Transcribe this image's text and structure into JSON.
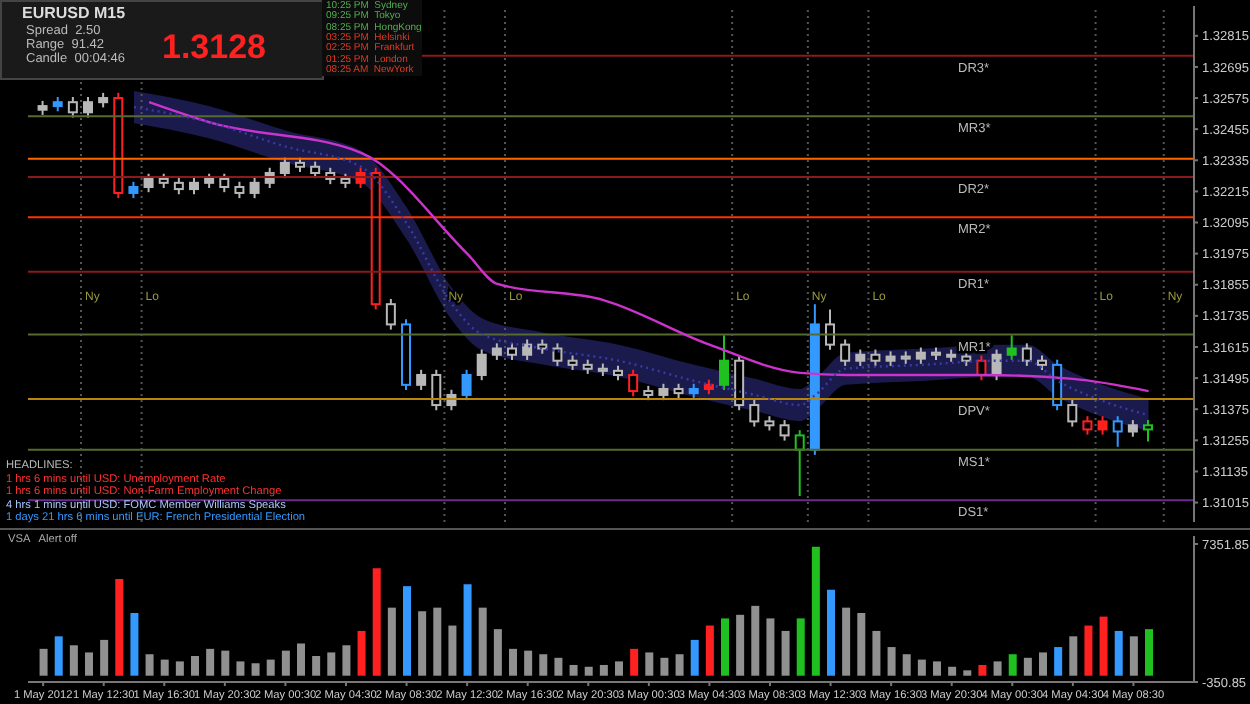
{
  "chart_data": [
    {
      "type": "candlestick",
      "title": "EURUSD M15",
      "x": [
        "2012-05-01T08:30",
        "2012-05-01T09:30",
        "2012-05-01T10:30",
        "2012-05-01T11:30",
        "2012-05-01T12:30",
        "2012-05-01T13:30",
        "2012-05-01T14:30",
        "2012-05-01T15:30",
        "2012-05-01T16:30",
        "2012-05-01T17:30",
        "2012-05-01T18:30",
        "2012-05-01T19:30",
        "2012-05-01T20:30",
        "2012-05-01T21:30",
        "2012-05-01T22:30",
        "2012-05-01T23:30",
        "2012-05-02T00:30",
        "2012-05-02T01:30",
        "2012-05-02T02:30",
        "2012-05-02T03:30",
        "2012-05-02T04:30",
        "2012-05-02T05:30",
        "2012-05-02T06:30",
        "2012-05-02T07:30",
        "2012-05-02T08:30",
        "2012-05-02T09:30",
        "2012-05-02T10:30",
        "2012-05-02T11:30",
        "2012-05-02T12:30",
        "2012-05-02T13:30",
        "2012-05-02T14:30",
        "2012-05-02T15:30",
        "2012-05-02T16:30",
        "2012-05-02T17:30",
        "2012-05-02T18:30",
        "2012-05-02T19:30",
        "2012-05-02T20:30",
        "2012-05-02T21:30",
        "2012-05-02T22:30",
        "2012-05-02T23:30",
        "2012-05-03T00:30",
        "2012-05-03T01:30",
        "2012-05-03T02:30",
        "2012-05-03T03:30",
        "2012-05-03T04:30",
        "2012-05-03T05:30",
        "2012-05-03T06:30",
        "2012-05-03T07:30",
        "2012-05-03T08:30",
        "2012-05-03T09:30",
        "2012-05-03T10:30",
        "2012-05-03T11:30",
        "2012-05-03T12:30",
        "2012-05-03T13:30",
        "2012-05-03T14:30",
        "2012-05-03T15:30",
        "2012-05-03T16:30",
        "2012-05-03T17:30",
        "2012-05-03T18:30",
        "2012-05-03T19:30",
        "2012-05-03T20:30",
        "2012-05-03T21:30",
        "2012-05-03T22:30",
        "2012-05-03T23:30",
        "2012-05-04T00:30",
        "2012-05-04T01:30",
        "2012-05-04T02:30",
        "2012-05-04T03:30",
        "2012-05-04T04:30",
        "2012-05-04T05:30",
        "2012-05-04T06:30",
        "2012-05-04T07:30",
        "2012-05-04T08:30",
        "2012-05-04T09:30"
      ],
      "ohlc": [
        [
          1.3253,
          1.32564,
          1.3251,
          1.32544
        ],
        [
          1.32544,
          1.32579,
          1.32524,
          1.32559
        ],
        [
          1.32559,
          1.32579,
          1.325,
          1.3252
        ],
        [
          1.3252,
          1.32579,
          1.325,
          1.32559
        ],
        [
          1.32559,
          1.32595,
          1.32539,
          1.32575
        ],
        [
          1.32575,
          1.32595,
          1.32189,
          1.32209
        ],
        [
          1.32209,
          1.32252,
          1.32189,
          1.32232
        ],
        [
          1.32232,
          1.32283,
          1.32212,
          1.32263
        ],
        [
          1.32263,
          1.32283,
          1.32228,
          1.32248
        ],
        [
          1.32248,
          1.32268,
          1.32204,
          1.32224
        ],
        [
          1.32224,
          1.32268,
          1.32204,
          1.32248
        ],
        [
          1.32248,
          1.32283,
          1.32228,
          1.32263
        ],
        [
          1.32263,
          1.32283,
          1.32212,
          1.32232
        ],
        [
          1.32232,
          1.32252,
          1.32189,
          1.32209
        ],
        [
          1.32209,
          1.32268,
          1.32189,
          1.32248
        ],
        [
          1.32248,
          1.32306,
          1.32228,
          1.32286
        ],
        [
          1.32286,
          1.32345,
          1.32266,
          1.32325
        ],
        [
          1.32325,
          1.32345,
          1.3229,
          1.3231
        ],
        [
          1.3231,
          1.3233,
          1.32266,
          1.32286
        ],
        [
          1.32286,
          1.32306,
          1.32243,
          1.32263
        ],
        [
          1.32263,
          1.32283,
          1.32228,
          1.32248
        ],
        [
          1.32248,
          1.32306,
          1.32228,
          1.32286
        ],
        [
          1.32286,
          1.32306,
          1.3176,
          1.3178
        ],
        [
          1.3178,
          1.318,
          1.31682,
          1.31702
        ],
        [
          1.31702,
          1.31722,
          1.31449,
          1.31469
        ],
        [
          1.31469,
          1.31527,
          1.31449,
          1.31507
        ],
        [
          1.31507,
          1.31527,
          1.31371,
          1.31391
        ],
        [
          1.31391,
          1.3145,
          1.31371,
          1.3143
        ],
        [
          1.3143,
          1.31527,
          1.3141,
          1.31507
        ],
        [
          1.31507,
          1.31605,
          1.31487,
          1.31585
        ],
        [
          1.31585,
          1.31629,
          1.31565,
          1.31609
        ],
        [
          1.31609,
          1.31629,
          1.31565,
          1.31585
        ],
        [
          1.31585,
          1.31644,
          1.31565,
          1.31624
        ],
        [
          1.31624,
          1.31644,
          1.31589,
          1.31609
        ],
        [
          1.31609,
          1.31629,
          1.31542,
          1.31562
        ],
        [
          1.31562,
          1.31582,
          1.31526,
          1.31546
        ],
        [
          1.31546,
          1.31566,
          1.31511,
          1.31531
        ],
        [
          1.31531,
          1.31551,
          1.31503,
          1.31523
        ],
        [
          1.31523,
          1.31543,
          1.31487,
          1.31507
        ],
        [
          1.31507,
          1.31527,
          1.31425,
          1.31445
        ],
        [
          1.31445,
          1.31465,
          1.3141,
          1.3143
        ],
        [
          1.3143,
          1.31473,
          1.3141,
          1.31453
        ],
        [
          1.31453,
          1.31473,
          1.31417,
          1.31437
        ],
        [
          1.31437,
          1.31473,
          1.31417,
          1.31453
        ],
        [
          1.31453,
          1.31489,
          1.31433,
          1.31469
        ],
        [
          1.31469,
          1.3166,
          1.31449,
          1.31562
        ],
        [
          1.31562,
          1.31582,
          1.31371,
          1.31391
        ],
        [
          1.31391,
          1.31411,
          1.31308,
          1.31328
        ],
        [
          1.31328,
          1.31348,
          1.31293,
          1.31313
        ],
        [
          1.31313,
          1.31333,
          1.31254,
          1.31274
        ],
        [
          1.31274,
          1.31294,
          1.3104,
          1.31219
        ],
        [
          1.31219,
          1.3178,
          1.31199,
          1.31702
        ],
        [
          1.31702,
          1.3176,
          1.31604,
          1.31624
        ],
        [
          1.31624,
          1.31644,
          1.31542,
          1.31562
        ],
        [
          1.31562,
          1.31605,
          1.31542,
          1.31585
        ],
        [
          1.31585,
          1.31605,
          1.31542,
          1.31562
        ],
        [
          1.31562,
          1.31598,
          1.31542,
          1.31578
        ],
        [
          1.31578,
          1.31598,
          1.3155,
          1.3157
        ],
        [
          1.3157,
          1.31613,
          1.3155,
          1.31593
        ],
        [
          1.31593,
          1.31613,
          1.31565,
          1.31585
        ],
        [
          1.31585,
          1.31605,
          1.31558,
          1.31578
        ],
        [
          1.31578,
          1.31598,
          1.31542,
          1.31562
        ],
        [
          1.31562,
          1.31582,
          1.31487,
          1.31507
        ],
        [
          1.31507,
          1.31605,
          1.31487,
          1.31585
        ],
        [
          1.31585,
          1.3166,
          1.31565,
          1.31609
        ],
        [
          1.31609,
          1.31629,
          1.31542,
          1.31562
        ],
        [
          1.31562,
          1.31582,
          1.31526,
          1.31546
        ],
        [
          1.31546,
          1.31566,
          1.31371,
          1.31391
        ],
        [
          1.31391,
          1.31411,
          1.31308,
          1.31328
        ],
        [
          1.31328,
          1.31348,
          1.31277,
          1.31297
        ],
        [
          1.31297,
          1.31348,
          1.31277,
          1.31328
        ],
        [
          1.31328,
          1.31348,
          1.3123,
          1.31289
        ],
        [
          1.31289,
          1.31333,
          1.31269,
          1.31313
        ],
        [
          1.31313,
          1.31333,
          1.3125,
          1.31297
        ]
      ],
      "colors": [
        "#b8b8b8",
        "#3399ff",
        "#b8b8b8",
        "#b8b8b8",
        "#b8b8b8",
        "#ff2020",
        "#3399ff",
        "#b8b8b8",
        "#b8b8b8",
        "#b8b8b8",
        "#b8b8b8",
        "#b8b8b8",
        "#b8b8b8",
        "#b8b8b8",
        "#b8b8b8",
        "#b8b8b8",
        "#b8b8b8",
        "#b8b8b8",
        "#b8b8b8",
        "#b8b8b8",
        "#b8b8b8",
        "#ff2020",
        "#ff2020",
        "#b8b8b8",
        "#3399ff",
        "#b8b8b8",
        "#b8b8b8",
        "#b8b8b8",
        "#3399ff",
        "#b8b8b8",
        "#b8b8b8",
        "#b8b8b8",
        "#b8b8b8",
        "#b8b8b8",
        "#b8b8b8",
        "#b8b8b8",
        "#b8b8b8",
        "#b8b8b8",
        "#b8b8b8",
        "#ff2020",
        "#b8b8b8",
        "#b8b8b8",
        "#b8b8b8",
        "#3399ff",
        "#ff2020",
        "#20c020",
        "#b8b8b8",
        "#b8b8b8",
        "#b8b8b8",
        "#b8b8b8",
        "#20c020",
        "#3399ff",
        "#b8b8b8",
        "#b8b8b8",
        "#b8b8b8",
        "#b8b8b8",
        "#b8b8b8",
        "#b8b8b8",
        "#b8b8b8",
        "#b8b8b8",
        "#b8b8b8",
        "#b8b8b8",
        "#ff2020",
        "#b8b8b8",
        "#20c020",
        "#b8b8b8",
        "#b8b8b8",
        "#3399ff",
        "#b8b8b8",
        "#ff2020",
        "#ff2020",
        "#3399ff",
        "#b8b8b8",
        "#20c020"
      ],
      "series": [
        {
          "type": "line",
          "color": "#cc33cc",
          "x": [
            "2012-05-01T15:30",
            "2012-05-01T19:30",
            "2012-05-02T05:30",
            "2012-05-02T12:30",
            "2012-05-02T14:30",
            "2012-05-02T21:30",
            "2012-05-03T04:30",
            "2012-05-03T10:30",
            "2012-05-03T13:30",
            "2012-05-03T22:30",
            "2012-05-04T04:30",
            "2012-05-04T09:30"
          ],
          "values": [
            1.32559,
            1.32481,
            1.32364,
            1.31975,
            1.31858,
            1.31796,
            1.31624,
            1.31515,
            1.31507,
            1.31507,
            1.31492,
            1.31445
          ]
        },
        {
          "type": "line",
          "color": "#3a3aa8",
          "line_style": "dotted",
          "x": [
            "2012-05-01T14:30",
            "2012-05-01T19:30",
            "2012-05-02T00:30",
            "2012-05-02T05:30",
            "2012-05-02T08:30",
            "2012-05-02T11:30",
            "2012-05-02T13:30",
            "2012-05-02T17:30",
            "2012-05-02T22:30",
            "2012-05-03T03:30",
            "2012-05-03T07:30",
            "2012-05-03T10:30",
            "2012-05-03T11:30",
            "2012-05-03T13:30",
            "2012-05-03T18:30",
            "2012-05-03T23:30",
            "2012-05-04T01:30",
            "2012-05-04T03:30",
            "2012-05-04T06:30",
            "2012-05-04T09:30"
          ],
          "values": [
            1.3254,
            1.32481,
            1.32388,
            1.3231,
            1.32092,
            1.3178,
            1.31663,
            1.31609,
            1.31562,
            1.31484,
            1.3143,
            1.31391,
            1.3143,
            1.31531,
            1.31546,
            1.31562,
            1.31562,
            1.31484,
            1.31406,
            1.31352
          ],
          "lower": [
            1.32478,
            1.32419,
            1.32326,
            1.32248,
            1.3203,
            1.31718,
            1.31601,
            1.31547,
            1.315,
            1.31422,
            1.31368,
            1.31329,
            1.31368,
            1.31469,
            1.31484,
            1.315,
            1.315,
            1.31422,
            1.31344,
            1.3129
          ],
          "upper": [
            1.32602,
            1.32543,
            1.3245,
            1.32372,
            1.32154,
            1.31842,
            1.31725,
            1.31671,
            1.31624,
            1.31546,
            1.31492,
            1.31453,
            1.31492,
            1.31593,
            1.31608,
            1.31624,
            1.31624,
            1.31546,
            1.31468,
            1.31414
          ]
        }
      ],
      "ref_lines": [
        {
          "axis": "y",
          "value": 1.32738,
          "label": "DR3*",
          "color": "#8b1a1a"
        },
        {
          "axis": "y",
          "value": 1.32505,
          "label": "MR3*",
          "color": "#556b2f"
        },
        {
          "axis": "y",
          "value": 1.32341,
          "color": "#ff6600"
        },
        {
          "axis": "y",
          "value": 1.32271,
          "label": "DR2*",
          "color": "#8b1a1a"
        },
        {
          "axis": "y",
          "value": 1.32115,
          "label": "MR2*",
          "color": "#ff3300"
        },
        {
          "axis": "y",
          "value": 1.31905,
          "label": "DR1*",
          "color": "#8b1a1a"
        },
        {
          "axis": "y",
          "value": 1.31663,
          "label": "MR1*",
          "color": "#556b2f"
        },
        {
          "axis": "y",
          "value": 1.31414,
          "label": "DPV*",
          "color": "#b8860b"
        },
        {
          "axis": "y",
          "value": 1.31219,
          "label": "MS1*",
          "color": "#556b2f"
        },
        {
          "axis": "y",
          "value": 1.31024,
          "label": "DS1*",
          "color": "#6a2c8a"
        },
        {
          "axis": "x",
          "value": "2012-05-01T11:00",
          "label": "Ny",
          "color": "#555555",
          "line_style": "dotted"
        },
        {
          "axis": "x",
          "value": "2012-05-01T15:00",
          "label": "Lo",
          "color": "#555555",
          "line_style": "dotted"
        },
        {
          "axis": "x",
          "value": "2012-05-02T11:00",
          "label": "Ny",
          "color": "#555555",
          "line_style": "dotted"
        },
        {
          "axis": "x",
          "value": "2012-05-02T15:00",
          "label": "Lo",
          "color": "#555555",
          "line_style": "dotted"
        },
        {
          "axis": "x",
          "value": "2012-05-03T06:00",
          "label": "Lo",
          "color": "#555555",
          "line_style": "dotted"
        },
        {
          "axis": "x",
          "value": "2012-05-03T11:00",
          "label": "Ny",
          "color": "#555555",
          "line_style": "dotted"
        },
        {
          "axis": "x",
          "value": "2012-05-03T15:00",
          "label": "Lo",
          "color": "#555555",
          "line_style": "dotted"
        },
        {
          "axis": "x",
          "value": "2012-05-04T06:00",
          "label": "Lo",
          "color": "#555555",
          "line_style": "dotted"
        },
        {
          "axis": "x",
          "value": "2012-05-04T10:30",
          "label": "Ny",
          "color": "#555555",
          "line_style": "dotted"
        }
      ],
      "annotations": [
        "Spread  2.50",
        "Range  91.42",
        "Candle  00:04:46",
        "1.3128",
        "10:25 PM  Sydney",
        "09:25 PM  Tokyo",
        "08:25 PM  HongKong",
        "03:25 PM  Helsinki",
        "02:25 PM  Frankfurt",
        "01:25 PM  London",
        "08:25 AM  NewYork",
        "HEADLINES:",
        "1 hrs 6 mins until USD: Unemployment Rate",
        "1 hrs 6 mins until USD: Non-Farm Employment Change",
        "4 hrs 1 mins until USD: FOMC Member Williams Speaks",
        "1 days 21 hrs 6 mins until EUR: French Presidential Election"
      ],
      "xlim": [
        "2012-05-01T07:30",
        "2012-05-04T12:30"
      ],
      "ylim": [
        1.3094,
        1.3293
      ],
      "yticks": [
        1.31015,
        1.31135,
        1.31255,
        1.31375,
        1.31495,
        1.31615,
        1.31735,
        1.31855,
        1.31975,
        1.32095,
        1.32215,
        1.32335,
        1.32455,
        1.32575,
        1.32695,
        1.32815
      ],
      "tick_labels": "y"
    },
    {
      "type": "bar",
      "title": "VSA",
      "annotations": [
        "Alert off"
      ],
      "x": [
        "2012-05-01T08:30",
        "2012-05-01T09:30",
        "2012-05-01T10:30",
        "2012-05-01T11:30",
        "2012-05-01T12:30",
        "2012-05-01T13:30",
        "2012-05-01T14:30",
        "2012-05-01T15:30",
        "2012-05-01T16:30",
        "2012-05-01T17:30",
        "2012-05-01T18:30",
        "2012-05-01T19:30",
        "2012-05-01T20:30",
        "2012-05-01T21:30",
        "2012-05-01T22:30",
        "2012-05-01T23:30",
        "2012-05-02T00:30",
        "2012-05-02T01:30",
        "2012-05-02T02:30",
        "2012-05-02T03:30",
        "2012-05-02T04:30",
        "2012-05-02T05:30",
        "2012-05-02T06:30",
        "2012-05-02T07:30",
        "2012-05-02T08:30",
        "2012-05-02T09:30",
        "2012-05-02T10:30",
        "2012-05-02T11:30",
        "2012-05-02T12:30",
        "2012-05-02T13:30",
        "2012-05-02T14:30",
        "2012-05-02T15:30",
        "2012-05-02T16:30",
        "2012-05-02T17:30",
        "2012-05-02T18:30",
        "2012-05-02T19:30",
        "2012-05-02T20:30",
        "2012-05-02T21:30",
        "2012-05-02T22:30",
        "2012-05-02T23:30",
        "2012-05-03T00:30",
        "2012-05-03T01:30",
        "2012-05-03T02:30",
        "2012-05-03T03:30",
        "2012-05-03T04:30",
        "2012-05-03T05:30",
        "2012-05-03T06:30",
        "2012-05-03T07:30",
        "2012-05-03T08:30",
        "2012-05-03T09:30",
        "2012-05-03T10:30",
        "2012-05-03T11:30",
        "2012-05-03T12:30",
        "2012-05-03T13:30",
        "2012-05-03T14:30",
        "2012-05-03T15:30",
        "2012-05-03T16:30",
        "2012-05-03T17:30",
        "2012-05-03T18:30",
        "2012-05-03T19:30",
        "2012-05-03T20:30",
        "2012-05-03T21:30",
        "2012-05-03T22:30",
        "2012-05-03T23:30",
        "2012-05-04T00:30",
        "2012-05-04T01:30",
        "2012-05-04T02:30",
        "2012-05-04T03:30",
        "2012-05-04T04:30",
        "2012-05-04T05:30",
        "2012-05-04T06:30",
        "2012-05-04T07:30",
        "2012-05-04T08:30",
        "2012-05-04T09:30"
      ],
      "values": [
        1500,
        2200,
        1700,
        1300,
        2000,
        5400,
        3500,
        1200,
        900,
        800,
        1100,
        1500,
        1400,
        800,
        700,
        900,
        1400,
        1800,
        1100,
        1300,
        1700,
        2500,
        6000,
        3800,
        5000,
        3600,
        3800,
        2800,
        5100,
        3800,
        2600,
        1500,
        1400,
        1200,
        1000,
        600,
        500,
        600,
        800,
        1500,
        1300,
        1000,
        1200,
        2000,
        2800,
        3200,
        3400,
        3900,
        3200,
        2500,
        3200,
        7200,
        4800,
        3800,
        3500,
        2500,
        1600,
        1200,
        900,
        800,
        500,
        300,
        600,
        800,
        1200,
        1000,
        1300,
        1600,
        2200,
        2800,
        3300,
        2500,
        2200,
        2600
      ],
      "colors": [
        "#909090",
        "#3399ff",
        "#909090",
        "#909090",
        "#909090",
        "#ff2020",
        "#3399ff",
        "#909090",
        "#909090",
        "#909090",
        "#909090",
        "#909090",
        "#909090",
        "#909090",
        "#909090",
        "#909090",
        "#909090",
        "#909090",
        "#909090",
        "#909090",
        "#909090",
        "#ff2020",
        "#ff2020",
        "#909090",
        "#3399ff",
        "#909090",
        "#909090",
        "#909090",
        "#3399ff",
        "#909090",
        "#909090",
        "#909090",
        "#909090",
        "#909090",
        "#909090",
        "#909090",
        "#909090",
        "#909090",
        "#909090",
        "#ff2020",
        "#909090",
        "#909090",
        "#909090",
        "#3399ff",
        "#ff2020",
        "#20c020",
        "#909090",
        "#909090",
        "#909090",
        "#909090",
        "#20c020",
        "#20c020",
        "#3399ff",
        "#909090",
        "#909090",
        "#909090",
        "#909090",
        "#909090",
        "#909090",
        "#909090",
        "#909090",
        "#909090",
        "#ff2020",
        "#909090",
        "#20c020",
        "#909090",
        "#909090",
        "#3399ff",
        "#909090",
        "#ff2020",
        "#ff2020",
        "#3399ff",
        "#909090",
        "#20c020"
      ],
      "xlim": [
        "2012-05-01T07:30",
        "2012-05-04T12:30"
      ],
      "xticks": [
        {
          "value": "2012-05-01T08:30",
          "label": "1 May 2012"
        },
        {
          "value": "2012-05-01T12:30",
          "label": "1 May 12:30"
        },
        {
          "value": "2012-05-01T16:30",
          "label": "1 May 16:30"
        },
        {
          "value": "2012-05-01T20:30",
          "label": "1 May 20:30"
        },
        {
          "value": "2012-05-02T00:30",
          "label": "2 May 00:30"
        },
        {
          "value": "2012-05-02T04:30",
          "label": "2 May 04:30"
        },
        {
          "value": "2012-05-02T08:30",
          "label": "2 May 08:30"
        },
        {
          "value": "2012-05-02T12:30",
          "label": "2 May 12:30"
        },
        {
          "value": "2012-05-02T16:30",
          "label": "2 May 16:30"
        },
        {
          "value": "2012-05-02T20:30",
          "label": "2 May 20:30"
        },
        {
          "value": "2012-05-03T00:30",
          "label": "3 May 00:30"
        },
        {
          "value": "2012-05-03T04:30",
          "label": "3 May 04:30"
        },
        {
          "value": "2012-05-03T08:30",
          "label": "3 May 08:30"
        },
        {
          "value": "2012-05-03T12:30",
          "label": "3 May 12:30"
        },
        {
          "value": "2012-05-03T16:30",
          "label": "3 May 16:30"
        },
        {
          "value": "2012-05-03T20:30",
          "label": "3 May 20:30"
        },
        {
          "value": "2012-05-04T00:30",
          "label": "4 May 00:30"
        },
        {
          "value": "2012-05-04T04:30",
          "label": "4 May 04:30"
        },
        {
          "value": "2012-05-04T08:30",
          "label": "4 May 08:30"
        }
      ],
      "ylim": [
        -350.85,
        7800
      ],
      "yticks": [
        -350.85,
        7351.85
      ]
    }
  ]
}
